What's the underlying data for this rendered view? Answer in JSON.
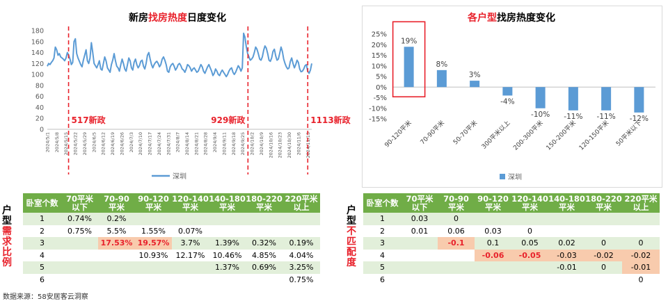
{
  "left_chart": {
    "title_prefix": "新房",
    "title_highlight": "找房热度",
    "title_suffix": "日度变化",
    "legend": "深圳",
    "annotations": [
      "517新政",
      "929新政",
      "1113新政"
    ],
    "ytick_labels": [
      "0",
      "20",
      "40",
      "60",
      "80",
      "100",
      "120",
      "140",
      "160",
      "180"
    ],
    "xtick_labels": [
      "2024/5/1",
      "2024/5/8",
      "2024/5/15",
      "2024/5/22",
      "2024/5/29",
      "2024/6/5",
      "2024/6/12",
      "2024/6/19",
      "2024/6/26",
      "2024/7/3",
      "2024/7/10",
      "2024/7/17",
      "2024/7/24",
      "2024/7/31",
      "2024/8/7",
      "2024/8/14",
      "2024/8/21",
      "2024/8/28",
      "2024/9/4",
      "2024/9/11",
      "2024/9/18",
      "2024/9/25",
      "2024/10/2",
      "2024/10/9",
      "2024/10/16",
      "2024/10/23",
      "2024/10/30",
      "2024/11/6",
      "2024/11/13"
    ]
  },
  "right_chart": {
    "title_highlight": "各户型",
    "title_suffix": "找房热度变化",
    "legend": "深圳",
    "ytick_labels": [
      "25%",
      "20%",
      "15%",
      "10%",
      "5%",
      "0%",
      "-5%",
      "-10%",
      "-15%"
    ],
    "value_labels": [
      "19%",
      "8%",
      "3%",
      "-4%",
      "-10%",
      "-11%",
      "-11%",
      "-12%"
    ]
  },
  "chart_data": [
    {
      "type": "line",
      "title": "新房找房热度日度变化",
      "xlabel": "",
      "ylabel": "",
      "ylim": [
        0,
        180
      ],
      "grid": false,
      "legend_position": "bottom",
      "x_start": "2024/5/1",
      "x_end": "2024/11/16",
      "series": [
        {
          "name": "深圳",
          "color": "#5b9bd5",
          "values": [
            115,
            120,
            118,
            122,
            125,
            130,
            150,
            145,
            135,
            138,
            132,
            130,
            128,
            125,
            130,
            140,
            135,
            128,
            118,
            122,
            160,
            165,
            138,
            130,
            124,
            118,
            114,
            126,
            135,
            145,
            125,
            120,
            130,
            158,
            140,
            120,
            116,
            112,
            118,
            125,
            110,
            108,
            120,
            132,
            125,
            112,
            108,
            104,
            118,
            126,
            138,
            125,
            115,
            112,
            106,
            118,
            128,
            120,
            110,
            106,
            118,
            130,
            125,
            112,
            108,
            122,
            128,
            118,
            112,
            116,
            124,
            126,
            115,
            110,
            120,
            135,
            140,
            128,
            118,
            112,
            118,
            122,
            124,
            120,
            114,
            118,
            128,
            132,
            126,
            118,
            106,
            104,
            114,
            118,
            120,
            115,
            108,
            112,
            118,
            120,
            116,
            110,
            108,
            104,
            110,
            118,
            116,
            112,
            106,
            110,
            112,
            108,
            104,
            106,
            112,
            118,
            114,
            106,
            102,
            108,
            114,
            118,
            112,
            106,
            98,
            102,
            110,
            106,
            100,
            98,
            104,
            108,
            104,
            100,
            96,
            100,
            106,
            110,
            112,
            104,
            100,
            104,
            110,
            116,
            112,
            106,
            112,
            175,
            168,
            150,
            138,
            132,
            126,
            128,
            132,
            140,
            150,
            146,
            138,
            128,
            126,
            132,
            144,
            152,
            148,
            138,
            126,
            124,
            130,
            142,
            146,
            134,
            126,
            128,
            138,
            150,
            142,
            128,
            120,
            114,
            110,
            112,
            124,
            130,
            120,
            112,
            118,
            126,
            122,
            110,
            105,
            106,
            110,
            116,
            118,
            106,
            102,
            108,
            120
          ]
        }
      ],
      "annotations": [
        {
          "x": "2024/5/17",
          "label": "517新政"
        },
        {
          "x": "2024/9/29",
          "label": "929新政"
        },
        {
          "x": "2024/11/13",
          "label": "1113新政"
        }
      ]
    },
    {
      "type": "bar",
      "title": "各户型找房热度变化",
      "categories": [
        "90-120平米",
        "70-90平米",
        "50-70平米",
        "300平米以上",
        "200-300平米",
        "150-200平米",
        "120-150平米",
        "50平米以下"
      ],
      "series": [
        {
          "name": "深圳",
          "values": [
            0.19,
            0.08,
            0.03,
            -0.04,
            -0.1,
            -0.11,
            -0.11,
            -0.12
          ]
        }
      ],
      "ylim": [
        -0.15,
        0.25
      ],
      "grid": false,
      "legend_position": "bottom",
      "highlight_category": "90-120平米"
    },
    {
      "type": "table",
      "title": "户型需求比例",
      "columns": [
        "卧室个数",
        "70平米以下",
        "70-90平米",
        "90-120平米",
        "120-140平米",
        "140-180平米",
        "180-220平米",
        "220平米以上"
      ],
      "rows": [
        [
          "1",
          "0.74%",
          "0.2%",
          "",
          "",
          "",
          "",
          ""
        ],
        [
          "2",
          "0.75%",
          "5.5%",
          "1.55%",
          "0.07%",
          "",
          "",
          ""
        ],
        [
          "3",
          "",
          "17.53%",
          "19.57%",
          "3.7%",
          "1.39%",
          "0.32%",
          "0.19%"
        ],
        [
          "4",
          "",
          "",
          "10.93%",
          "12.17%",
          "10.46%",
          "4.85%",
          "4.04%"
        ],
        [
          "5",
          "",
          "",
          "",
          "",
          "1.37%",
          "0.69%",
          "3.25%"
        ],
        [
          "6",
          "",
          "",
          "",
          "",
          "",
          "",
          "0.75%"
        ]
      ]
    },
    {
      "type": "table",
      "title": "户型不匹配度",
      "columns": [
        "卧室个数",
        "70平米以下",
        "70-90平米",
        "90-120平米",
        "120-140平米",
        "140-180平米",
        "180-220平米",
        "220平米以上"
      ],
      "rows": [
        [
          "1",
          "0.03",
          "0",
          "",
          "",
          "",
          "",
          ""
        ],
        [
          "2",
          "0.01",
          "0.06",
          "0.03",
          "0",
          "",
          "",
          ""
        ],
        [
          "3",
          "",
          "-0.1",
          "0.1",
          "0.05",
          "0.02",
          "0",
          "0"
        ],
        [
          "4",
          "",
          "",
          "-0.06",
          "-0.05",
          "-0.03",
          "-0.02",
          "-0.02"
        ],
        [
          "5",
          "",
          "",
          "",
          "",
          "-0.01",
          "0",
          "-0.01"
        ],
        [
          "6",
          "",
          "",
          "",
          "",
          "",
          "",
          "0"
        ]
      ]
    }
  ],
  "left_table": {
    "side_label_plain": "户型",
    "side_label_highlight": "需求比例",
    "headers": [
      "卧室个数",
      "70平米\n以下",
      "70-90\n平米",
      "90-120\n平米",
      "120-140\n平米",
      "140-180\n平米",
      "180-220\n平米",
      "220平米\n以上"
    ],
    "rows": [
      [
        "1",
        "0.74%",
        "0.2%",
        "",
        "",
        "",
        "",
        ""
      ],
      [
        "2",
        "0.75%",
        "5.5%",
        "1.55%",
        "0.07%",
        "",
        "",
        ""
      ],
      [
        "3",
        "",
        "17.53%",
        "19.57%",
        "3.7%",
        "1.39%",
        "0.32%",
        "0.19%"
      ],
      [
        "4",
        "",
        "",
        "10.93%",
        "12.17%",
        "10.46%",
        "4.85%",
        "4.04%"
      ],
      [
        "5",
        "",
        "",
        "",
        "",
        "1.37%",
        "0.69%",
        "3.25%"
      ],
      [
        "6",
        "",
        "",
        "",
        "",
        "",
        "",
        "0.75%"
      ]
    ],
    "hot_cells": [
      [
        2,
        2
      ],
      [
        2,
        3
      ]
    ]
  },
  "right_table": {
    "side_label_plain": "户型",
    "side_label_highlight": "不匹配度",
    "headers": [
      "卧室个数",
      "70平米\n以下",
      "70-90\n平米",
      "90-120\n平米",
      "120-140\n平米",
      "140-180\n平米",
      "180-220\n平米",
      "220平米\n以上"
    ],
    "rows": [
      [
        "1",
        "0.03",
        "0",
        "",
        "",
        "",
        "",
        ""
      ],
      [
        "2",
        "0.01",
        "0.06",
        "0.03",
        "0",
        "",
        "",
        ""
      ],
      [
        "3",
        "",
        "-0.1",
        "0.1",
        "0.05",
        "0.02",
        "0",
        "0"
      ],
      [
        "4",
        "",
        "",
        "-0.06",
        "-0.05",
        "-0.03",
        "-0.02",
        "-0.02"
      ],
      [
        "5",
        "",
        "",
        "",
        "",
        "-0.01",
        "0",
        "-0.01"
      ],
      [
        "6",
        "",
        "",
        "",
        "",
        "",
        "",
        "0"
      ]
    ],
    "warm_cells": [
      [
        2,
        2
      ],
      [
        3,
        3
      ],
      [
        3,
        4
      ],
      [
        3,
        5
      ],
      [
        3,
        6
      ],
      [
        3,
        7
      ],
      [
        4,
        7
      ]
    ],
    "bold_red_cells": [
      [
        2,
        2
      ],
      [
        3,
        3
      ],
      [
        3,
        4
      ]
    ]
  },
  "source": "数据来源：58安居客云洞察",
  "colors": {
    "accent_red": "#e8212b",
    "series_blue": "#5b9bd5",
    "table_green": "#70ad47",
    "row_green": "#e2efda",
    "hot_fill": "#f8cbad"
  }
}
